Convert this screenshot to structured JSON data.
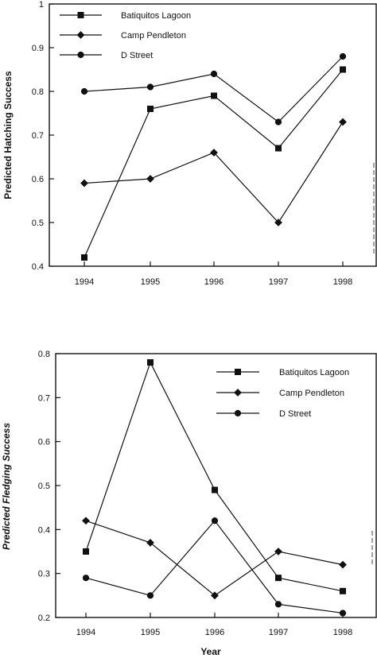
{
  "chart_data": [
    {
      "type": "line",
      "categories": [
        "1994",
        "1995",
        "1996",
        "1997",
        "1998"
      ],
      "series": [
        {
          "name": "Batiquitos Lagoon",
          "marker": "square",
          "values": [
            0.42,
            0.76,
            0.79,
            0.67,
            0.85
          ]
        },
        {
          "name": "Camp Pendleton",
          "marker": "diamond",
          "values": [
            0.59,
            0.6,
            0.66,
            0.5,
            0.73
          ]
        },
        {
          "name": "D Street",
          "marker": "circle",
          "values": [
            0.8,
            0.81,
            0.84,
            0.73,
            0.88
          ]
        }
      ],
      "title": "",
      "xlabel": "",
      "ylabel": "Predicted  Hatching Success",
      "ylim": [
        0.4,
        1.0
      ],
      "yticks": [
        "0.4",
        "0.5",
        "0.6",
        "0.7",
        "0.8",
        "0.9",
        "1"
      ],
      "legend_position": "top-left",
      "grid": false
    },
    {
      "type": "line",
      "categories": [
        "1994",
        "1995",
        "1996",
        "1997",
        "1998"
      ],
      "series": [
        {
          "name": "Batiquitos Lagoon",
          "marker": "square",
          "values": [
            0.35,
            0.78,
            0.49,
            0.29,
            0.26
          ]
        },
        {
          "name": "Camp Pendleton",
          "marker": "diamond",
          "values": [
            0.42,
            0.37,
            0.25,
            0.35,
            0.32
          ]
        },
        {
          "name": "D Street",
          "marker": "circle",
          "values": [
            0.29,
            0.25,
            0.42,
            0.23,
            0.21
          ]
        }
      ],
      "title": "",
      "xlabel": "Year",
      "ylabel": "Predicted Fledging Success",
      "ylim": [
        0.2,
        0.8
      ],
      "yticks": [
        "0.2",
        "0.3",
        "0.4",
        "0.5",
        "0.6",
        "0.7",
        "0.8"
      ],
      "legend_position": "top-right",
      "grid": false
    }
  ],
  "colors": {
    "ink": "#111111",
    "background": "#ffffff"
  }
}
